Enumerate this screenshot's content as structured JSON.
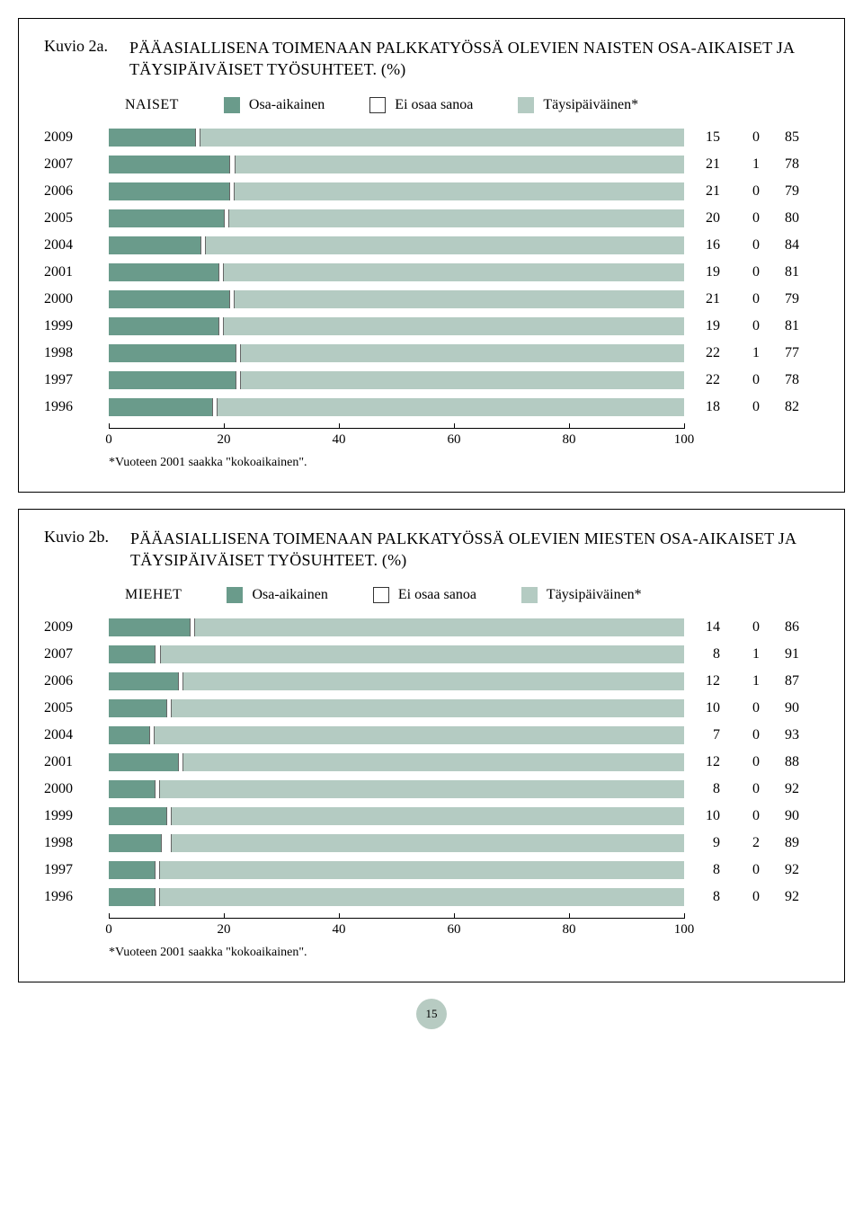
{
  "colors": {
    "series_a": "#6a9b8b",
    "series_b": "#ffffff",
    "series_c": "#b4cbc2",
    "badge_bg": "#b7cbc2"
  },
  "axis": {
    "max": 100,
    "ticks": [
      0,
      20,
      40,
      60,
      80,
      100
    ]
  },
  "footnote": "*Vuoteen 2001 saakka \"kokoaikainen\".",
  "page_number": "15",
  "panels": [
    {
      "fig_label": "Kuvio 2a.",
      "title": "PÄÄASIALLISENA TOIMENAAN PALKKATYÖSSÄ OLEVIEN NAISTEN OSA-AIKAISET JA TÄYSIPÄIVÄISET TYÖSUHTEET. (%)",
      "group_label": "NAISET",
      "legend": [
        "Osa-aikainen",
        "Ei osaa sanoa",
        "Täysipäiväinen*"
      ],
      "rows": [
        {
          "year": "2009",
          "v": [
            15,
            0,
            85
          ]
        },
        {
          "year": "2007",
          "v": [
            21,
            1,
            78
          ]
        },
        {
          "year": "2006",
          "v": [
            21,
            0,
            79
          ]
        },
        {
          "year": "2005",
          "v": [
            20,
            0,
            80
          ]
        },
        {
          "year": "2004",
          "v": [
            16,
            0,
            84
          ]
        },
        {
          "year": "2001",
          "v": [
            19,
            0,
            81
          ]
        },
        {
          "year": "2000",
          "v": [
            21,
            0,
            79
          ]
        },
        {
          "year": "1999",
          "v": [
            19,
            0,
            81
          ]
        },
        {
          "year": "1998",
          "v": [
            22,
            1,
            77
          ]
        },
        {
          "year": "1997",
          "v": [
            22,
            0,
            78
          ]
        },
        {
          "year": "1996",
          "v": [
            18,
            0,
            82
          ]
        }
      ]
    },
    {
      "fig_label": "Kuvio 2b.",
      "title": "PÄÄASIALLISENA TOIMENAAN PALKKATYÖSSÄ OLEVIEN MIESTEN OSA-AIKAISET JA TÄYSIPÄIVÄISET TYÖSUHTEET. (%)",
      "group_label": "MIEHET",
      "legend": [
        "Osa-aikainen",
        "Ei osaa sanoa",
        "Täysipäiväinen*"
      ],
      "rows": [
        {
          "year": "2009",
          "v": [
            14,
            0,
            86
          ]
        },
        {
          "year": "2007",
          "v": [
            8,
            1,
            91
          ]
        },
        {
          "year": "2006",
          "v": [
            12,
            1,
            87
          ]
        },
        {
          "year": "2005",
          "v": [
            10,
            0,
            90
          ]
        },
        {
          "year": "2004",
          "v": [
            7,
            0,
            93
          ]
        },
        {
          "year": "2001",
          "v": [
            12,
            0,
            88
          ]
        },
        {
          "year": "2000",
          "v": [
            8,
            0,
            92
          ]
        },
        {
          "year": "1999",
          "v": [
            10,
            0,
            90
          ]
        },
        {
          "year": "1998",
          "v": [
            9,
            2,
            89
          ]
        },
        {
          "year": "1997",
          "v": [
            8,
            0,
            92
          ]
        },
        {
          "year": "1996",
          "v": [
            8,
            0,
            92
          ]
        }
      ]
    }
  ]
}
